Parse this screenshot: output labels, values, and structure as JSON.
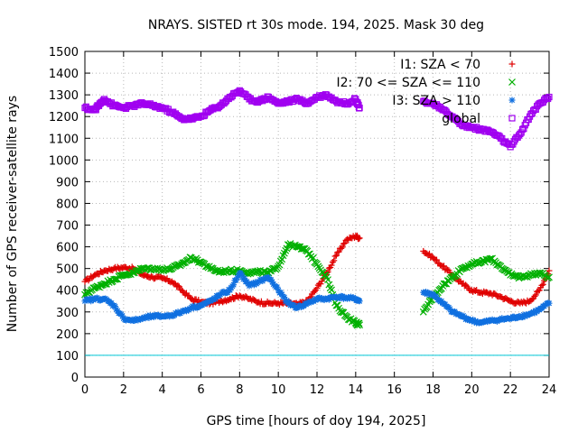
{
  "chart_data": {
    "type": "scatter",
    "title": "NRAYS. SISTED rt 30s mode. 194, 2025. Mask 30 deg",
    "xlabel": "GPS time [hours of doy 194, 2025]",
    "ylabel": "Number of GPS receiver-satellite rays",
    "xlim": [
      0,
      24
    ],
    "ylim": [
      0,
      1500
    ],
    "xticks": [
      0,
      2,
      4,
      6,
      8,
      10,
      12,
      14,
      16,
      18,
      20,
      22,
      24
    ],
    "yticks": [
      0,
      100,
      200,
      300,
      400,
      500,
      600,
      700,
      800,
      900,
      1000,
      1100,
      1200,
      1300,
      1400,
      1500
    ],
    "grid": true,
    "legend_position": "top-right",
    "reference_line": {
      "y": 100,
      "color": "#00c8d8"
    },
    "series": [
      {
        "name": "I1: SZA < 70",
        "marker": "+",
        "color": "#e00000",
        "x": [
          0,
          0.5,
          1,
          1.5,
          2,
          2.5,
          3,
          3.5,
          4,
          4.5,
          5,
          5.5,
          6,
          6.5,
          7,
          7.5,
          8,
          8.5,
          9,
          9.5,
          10,
          10.5,
          11,
          11.5,
          12,
          12.5,
          13,
          13.5,
          14,
          14.2,
          17.5,
          18,
          18.5,
          19,
          19.5,
          20,
          20.5,
          21,
          21.5,
          22,
          22.5,
          23,
          23.5,
          24
        ],
        "y": [
          440,
          470,
          490,
          500,
          505,
          500,
          470,
          460,
          455,
          440,
          400,
          360,
          345,
          340,
          350,
          360,
          375,
          360,
          345,
          340,
          340,
          340,
          335,
          350,
          410,
          480,
          560,
          630,
          650,
          640,
          580,
          550,
          510,
          470,
          430,
          400,
          390,
          385,
          370,
          350,
          340,
          350,
          400,
          490
        ]
      },
      {
        "name": "I2: 70 <= SZA <= 110",
        "marker": "x",
        "color": "#00b000",
        "x": [
          0,
          0.5,
          1,
          1.5,
          2,
          2.5,
          3,
          3.5,
          4,
          4.5,
          5,
          5.5,
          6,
          6.5,
          7,
          7.5,
          8,
          8.5,
          9,
          9.5,
          10,
          10.5,
          11,
          11.5,
          12,
          12.5,
          13,
          13.5,
          14,
          14.2,
          17.5,
          18,
          18.5,
          19,
          19.5,
          20,
          20.5,
          21,
          21.5,
          22,
          22.5,
          23,
          23.5,
          24
        ],
        "y": [
          380,
          410,
          430,
          450,
          470,
          480,
          500,
          500,
          495,
          500,
          520,
          550,
          530,
          500,
          485,
          490,
          490,
          480,
          485,
          480,
          510,
          610,
          600,
          580,
          520,
          460,
          330,
          280,
          250,
          240,
          300,
          370,
          420,
          460,
          500,
          520,
          530,
          545,
          510,
          470,
          460,
          470,
          480,
          460
        ]
      },
      {
        "name": "I3: SZA > 110",
        "marker": "*",
        "color": "#1070e0",
        "x": [
          0,
          0.5,
          1,
          1.5,
          2,
          2.5,
          3,
          3.5,
          4,
          4.5,
          5,
          5.5,
          6,
          6.5,
          7,
          7.5,
          8,
          8.5,
          9,
          9.5,
          10,
          10.5,
          11,
          11.5,
          12,
          12.5,
          13,
          13.5,
          14,
          14.2,
          17.5,
          18,
          18.5,
          19,
          19.5,
          20,
          20.5,
          21,
          21.5,
          22,
          22.5,
          23,
          23.5,
          24
        ],
        "y": [
          350,
          360,
          360,
          330,
          270,
          260,
          270,
          280,
          280,
          285,
          300,
          320,
          330,
          350,
          380,
          400,
          480,
          420,
          440,
          460,
          400,
          340,
          320,
          340,
          360,
          360,
          370,
          365,
          360,
          350,
          390,
          380,
          340,
          300,
          280,
          260,
          250,
          260,
          265,
          270,
          280,
          290,
          310,
          340
        ]
      },
      {
        "name": "global",
        "marker": "square",
        "color": "#a000f0",
        "x": [
          0,
          0.5,
          0.8,
          1,
          1.5,
          2,
          2.5,
          3,
          3.5,
          4,
          4.5,
          5,
          5.5,
          6,
          6.5,
          7,
          7.5,
          8,
          8.5,
          9,
          9.5,
          10,
          10.5,
          11,
          11.5,
          12,
          12.5,
          13,
          13.5,
          14,
          14.2,
          17.5,
          18,
          18.5,
          19,
          19.5,
          20,
          20.5,
          21,
          21.5,
          22,
          22.5,
          23,
          23.5,
          24
        ],
        "y": [
          1240,
          1230,
          1260,
          1280,
          1250,
          1240,
          1250,
          1260,
          1250,
          1240,
          1220,
          1190,
          1190,
          1200,
          1230,
          1250,
          1290,
          1320,
          1280,
          1270,
          1290,
          1260,
          1270,
          1280,
          1260,
          1290,
          1300,
          1270,
          1260,
          1280,
          1240,
          1270,
          1260,
          1230,
          1200,
          1160,
          1150,
          1140,
          1130,
          1100,
          1060,
          1120,
          1200,
          1260,
          1290
        ]
      }
    ]
  }
}
